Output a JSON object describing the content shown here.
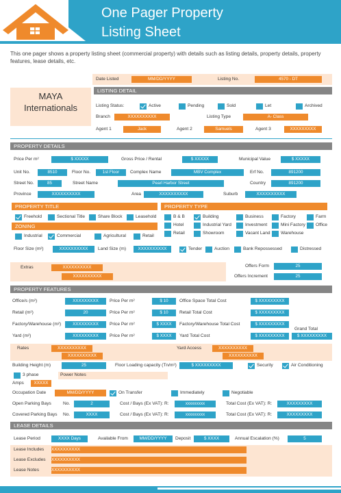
{
  "header": {
    "title": [
      "One Pager Property",
      "Listing Sheet"
    ],
    "description": "This one pager shows a property listing sheet (commercial property) with details such as listing details, property details, property features, lease details, etc."
  },
  "listing": {
    "date_label": "Date Listed",
    "date": "MM/DD/YYYY",
    "number_label": "Listing No.",
    "number": "4570 - DT",
    "company": [
      "MAYA",
      "Internationals"
    ],
    "section": "LISTING DETAIL",
    "status_label": "Listing Status:",
    "statuses": [
      {
        "label": "Active",
        "checked": true
      },
      {
        "label": "Pending",
        "checked": false
      },
      {
        "label": "Sold",
        "checked": false
      },
      {
        "label": "Let",
        "checked": false
      },
      {
        "label": "Archived",
        "checked": false
      }
    ],
    "branch_label": "Branch",
    "branch": "XXXXXXXXXX",
    "type_label": "Listing Type",
    "type": "A- Class",
    "agents": [
      {
        "label": "Agent 1",
        "name": "Jack"
      },
      {
        "label": "Agent 2",
        "name": "Samuels"
      },
      {
        "label": "Agent 3",
        "name": "XXXXXXXXX"
      }
    ]
  },
  "property_details": {
    "section": "PROPERTY DETAILS",
    "fields": [
      {
        "label": "Price Per m²",
        "value": "$ XXXXX"
      },
      {
        "label": "Gross Price / Rental",
        "value": "$ XXXXX"
      },
      {
        "label": "Municipal Value",
        "value": "$ XXXXX"
      },
      {
        "label": "Unit No.",
        "value": "8510"
      },
      {
        "label": "Floor No.",
        "value": "1st Floor"
      },
      {
        "label": "Complex Name",
        "value": "MBV Complex"
      },
      {
        "label": "Erf No.",
        "value": "891200"
      },
      {
        "label": "Street No.",
        "value": "85"
      },
      {
        "label": "Street Name",
        "value": "Pearl Harbor Street"
      },
      {
        "label": "Country",
        "value": "891200"
      },
      {
        "label": "Province",
        "value": "XXXXXXXXXX"
      },
      {
        "label": "Area",
        "value": "XXXXXXXXXX"
      },
      {
        "label": "Suburb",
        "value": "XXXXXXXXXX"
      }
    ],
    "title_section": "PROPERTY TITLE",
    "titles": [
      {
        "label": "Freehold",
        "checked": true
      },
      {
        "label": "Sectional Title",
        "checked": false
      },
      {
        "label": "Share Block",
        "checked": false
      },
      {
        "label": "Leasehold",
        "checked": false
      }
    ],
    "zoning_section": "ZONING",
    "zoning": [
      {
        "label": "Industrial",
        "checked": false
      },
      {
        "label": "Commercial",
        "checked": true
      },
      {
        "label": "Agricultural",
        "checked": false
      },
      {
        "label": "Retail",
        "checked": false
      }
    ],
    "type_section": "PROPERTY TYPE",
    "types": [
      {
        "label": "B & B",
        "checked": false
      },
      {
        "label": "Building",
        "checked": true
      },
      {
        "label": "Business",
        "checked": false
      },
      {
        "label": "Factory",
        "checked": false
      },
      {
        "label": "Farm",
        "checked": false
      },
      {
        "label": "Hotel",
        "checked": false
      },
      {
        "label": "Industrial Yard",
        "checked": false
      },
      {
        "label": "Investment",
        "checked": false
      },
      {
        "label": "Mini Factory",
        "checked": false
      },
      {
        "label": "Office",
        "checked": false
      },
      {
        "label": "Retail",
        "checked": false
      },
      {
        "label": "Showroom",
        "checked": false
      },
      {
        "label": "Vacant Land",
        "checked": false
      },
      {
        "label": "Warehouse",
        "checked": false
      }
    ],
    "floor_size": {
      "label": "Floor Size (m²)",
      "value": "XXXXXXXXXX"
    },
    "land_size": {
      "label": "Land Size (m)",
      "value": "XXXXXXXXXX"
    },
    "sale_types": [
      {
        "label": "Tender",
        "checked": true
      },
      {
        "label": "Auction",
        "checked": false
      },
      {
        "label": "Bank Repossessed",
        "checked": false
      },
      {
        "label": "Distressed",
        "checked": false
      }
    ],
    "extras_label": "Extras",
    "extras": [
      "XXXXXXXXXX",
      "XXXXXXXXXX"
    ],
    "offers_form": {
      "label": "Offers Form",
      "value": "25"
    },
    "offers_increment": {
      "label": "Offers Increment",
      "value": "25"
    }
  },
  "property_features": {
    "section": "PROPERTY FEATURES",
    "rows": [
      {
        "label": "Office/s (m²)",
        "area": "XXXXXXXXX",
        "price_label": "Price Per m²",
        "price": "$ 10",
        "total_label": "Office Space Total Cost",
        "total": "$ XXXXXXXXX"
      },
      {
        "label": "Retail (m²)",
        "area": "20",
        "price_label": "Price Per m²",
        "price": "$ 10",
        "total_label": "Retail Total Cost",
        "total": "$ XXXXXXXXX"
      },
      {
        "label": "Factory/Warehouse (m²)",
        "area": "XXXXXXXXX",
        "price_label": "Price Per m²",
        "price": "$ XXXX",
        "total_label": "Factory/Warehouse Total Cost",
        "total": "$ XXXXXXXXX"
      },
      {
        "label": "Yard (m²)",
        "area": "XXXXXXXXX",
        "price_label": "Price Per m²",
        "price": "$ XXXX",
        "total_label": "Yard Total Cost",
        "total": "$ XXXXXXXXX"
      }
    ],
    "grand_total": {
      "label": "Grand Total",
      "value": "$ XXXXXXXXX"
    },
    "rates": {
      "label": "Rates",
      "values": [
        "XXXXXXXXXX",
        "XXXXXXXXXX"
      ]
    },
    "yard_access": {
      "label": "Yard Access",
      "values": [
        "XXXXXXXXXX",
        "XXXXXXXXXX"
      ]
    },
    "building_height": {
      "label": "Building Height (m)",
      "value": "25"
    },
    "floor_loading": {
      "label": "Floor Loading capacity (Tn/m²)",
      "value": "$ XXXXXXXXX"
    },
    "services": [
      {
        "label": "Security",
        "checked": true
      },
      {
        "label": "Air Conditioning",
        "checked": true
      }
    ],
    "three_phase": {
      "label": "3 phase",
      "checked": false
    },
    "power_notes": "Power Notes",
    "amps": {
      "label": "Amps",
      "value": "XXXXX"
    },
    "occupation": {
      "label": "Occupation Date",
      "value": "MM/DD/YYYY",
      "options": [
        {
          "label": "On Transfer",
          "checked": true
        },
        {
          "label": "Immediately",
          "checked": false
        },
        {
          "label": "Negotiable",
          "checked": false
        }
      ]
    },
    "parking": [
      {
        "label": "Open Parking Bays",
        "no_label": "No.",
        "no": "2",
        "cost_label": "Cost / Bays (Ex VAT): R:",
        "cost": "xxxxxxxxx",
        "total_label": "Total Cost (Ex VAT): R:",
        "total": "XXXXXXXXX"
      },
      {
        "label": "Covered Parking Bays",
        "no_label": "No.",
        "no": "XXXX",
        "cost_label": "Cost / Bays (Ex VAT): R:",
        "cost": "xxxxxxxxx",
        "total_label": "Total Cost (Ex VAT): R:",
        "total": "XXXXXXXXX"
      }
    ]
  },
  "lease_details": {
    "section": "LEASE DETAILS",
    "fields": [
      {
        "label": "Lease Period",
        "value": "XXXX Days"
      },
      {
        "label": "Available From",
        "value": "MM/DD/YYYY"
      },
      {
        "label": "Deposit",
        "value": "$ XXXX"
      },
      {
        "label": "Annual Escalation (%)",
        "value": "5"
      }
    ],
    "notes": [
      {
        "label": "Lease Includes",
        "value": "XXXXXXXXXX"
      },
      {
        "label": "Lease Excludes",
        "value": "XXXXXXXXXX"
      },
      {
        "label": "Lease Notes",
        "value": "XXXXXXXXXX"
      }
    ]
  }
}
